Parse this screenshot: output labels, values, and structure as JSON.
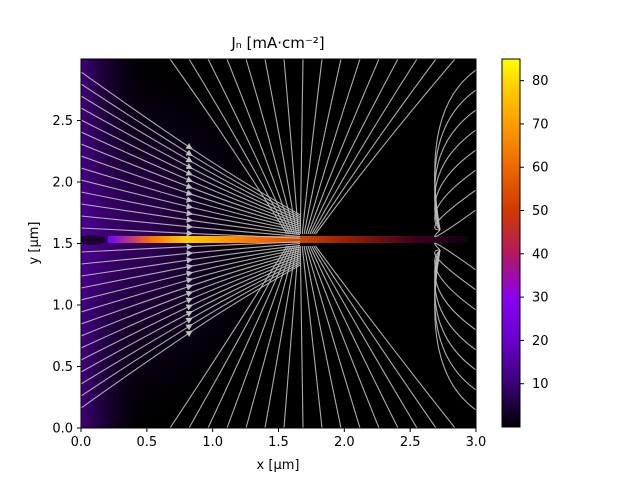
{
  "chart_data": {
    "type": "heatmap",
    "title": "Jₙ [mA·cm⁻²]",
    "xlabel": "x [µm]",
    "ylabel": "y [µm]",
    "xlim": [
      0.0,
      3.0
    ],
    "ylim": [
      0.0,
      3.0
    ],
    "x_ticks": [
      "0.0",
      "0.5",
      "1.0",
      "1.5",
      "2.0",
      "2.5",
      "3.0"
    ],
    "y_ticks": [
      "0.0",
      "0.5",
      "1.0",
      "1.5",
      "2.0",
      "2.5"
    ],
    "colorbar": {
      "min": 0,
      "max": 85,
      "ticks": [
        "10",
        "20",
        "30",
        "40",
        "50",
        "60",
        "70",
        "80"
      ],
      "colormap": "gnuplot"
    },
    "overlay": "streamlines",
    "streamline_color": "#bfbfbf"
  }
}
